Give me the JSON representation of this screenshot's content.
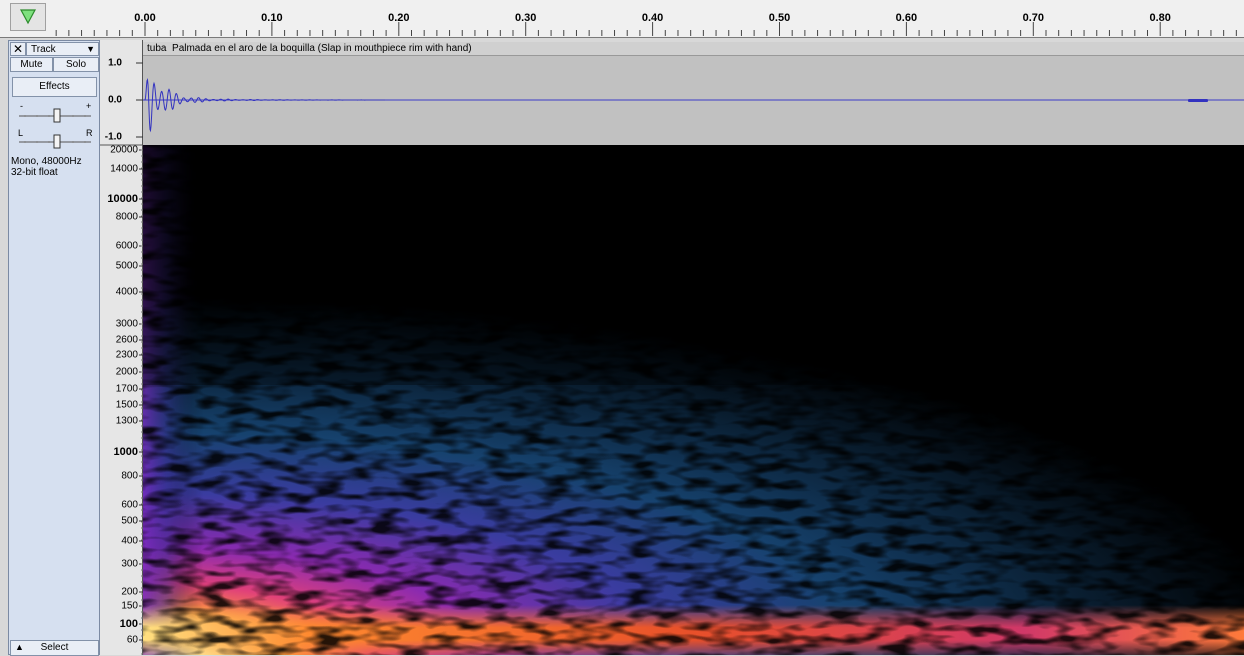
{
  "ruler": {
    "ticks": [
      "0.00",
      "0.10",
      "0.20",
      "0.30",
      "0.40",
      "0.50",
      "0.60",
      "0.70",
      "0.80"
    ]
  },
  "track": {
    "name": "Track",
    "mute": "Mute",
    "solo": "Solo",
    "effects": "Effects",
    "gain_min": "-",
    "gain_max": "+",
    "pan_left": "L",
    "pan_right": "R",
    "format": "Mono, 48000Hz",
    "sample_type": "32-bit float",
    "select": "Select",
    "title": "tuba  Palmada en el aro de la boquilla (Slap in mouthpiece rim with hand)"
  },
  "waveform_scale": [
    "1.0",
    "0.0",
    "-1.0"
  ],
  "spectrogram_scale": [
    "20000",
    "14000",
    "10000",
    "8000",
    "6000",
    "5000",
    "4000",
    "3000",
    "2600",
    "2300",
    "2000",
    "1700",
    "1500",
    "1300",
    "1000",
    "800",
    "600",
    "500",
    "400",
    "300",
    "200",
    "150",
    "100",
    "60"
  ]
}
